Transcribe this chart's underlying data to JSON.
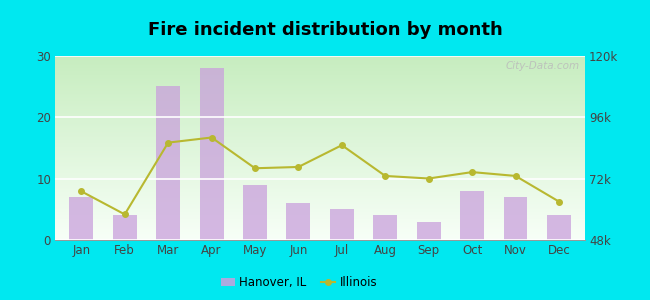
{
  "title": "Fire incident distribution by month",
  "months": [
    "Jan",
    "Feb",
    "Mar",
    "Apr",
    "May",
    "Jun",
    "Jul",
    "Aug",
    "Sep",
    "Oct",
    "Nov",
    "Dec"
  ],
  "hanover_bars": [
    7,
    4,
    25,
    28,
    9,
    6,
    5,
    4,
    3,
    8,
    7,
    4
  ],
  "illinois_line_right": [
    67000,
    58000,
    86000,
    88000,
    76000,
    76500,
    85000,
    73000,
    72000,
    74500,
    73000,
    63000
  ],
  "bar_color": "#c9a0dc",
  "bar_alpha": 0.75,
  "line_color": "#b8b830",
  "line_marker": "o",
  "line_marker_size": 4,
  "line_width": 1.5,
  "ylim_left": [
    0,
    30
  ],
  "ylim_right": [
    48000,
    120000
  ],
  "yticks_left": [
    0,
    10,
    20,
    30
  ],
  "yticks_right": [
    48000,
    72000,
    96000,
    120000
  ],
  "ytick_labels_right": [
    "48k",
    "72k",
    "96k",
    "120k"
  ],
  "bg_top_color": "#f5fff5",
  "bg_bottom_color": "#c8eec0",
  "outer_background": "#00e8f0",
  "title_fontsize": 13,
  "tick_fontsize": 8.5,
  "legend_label_hanover": "Hanover, IL",
  "legend_label_illinois": "Illinois",
  "watermark_text": "City-Data.com"
}
